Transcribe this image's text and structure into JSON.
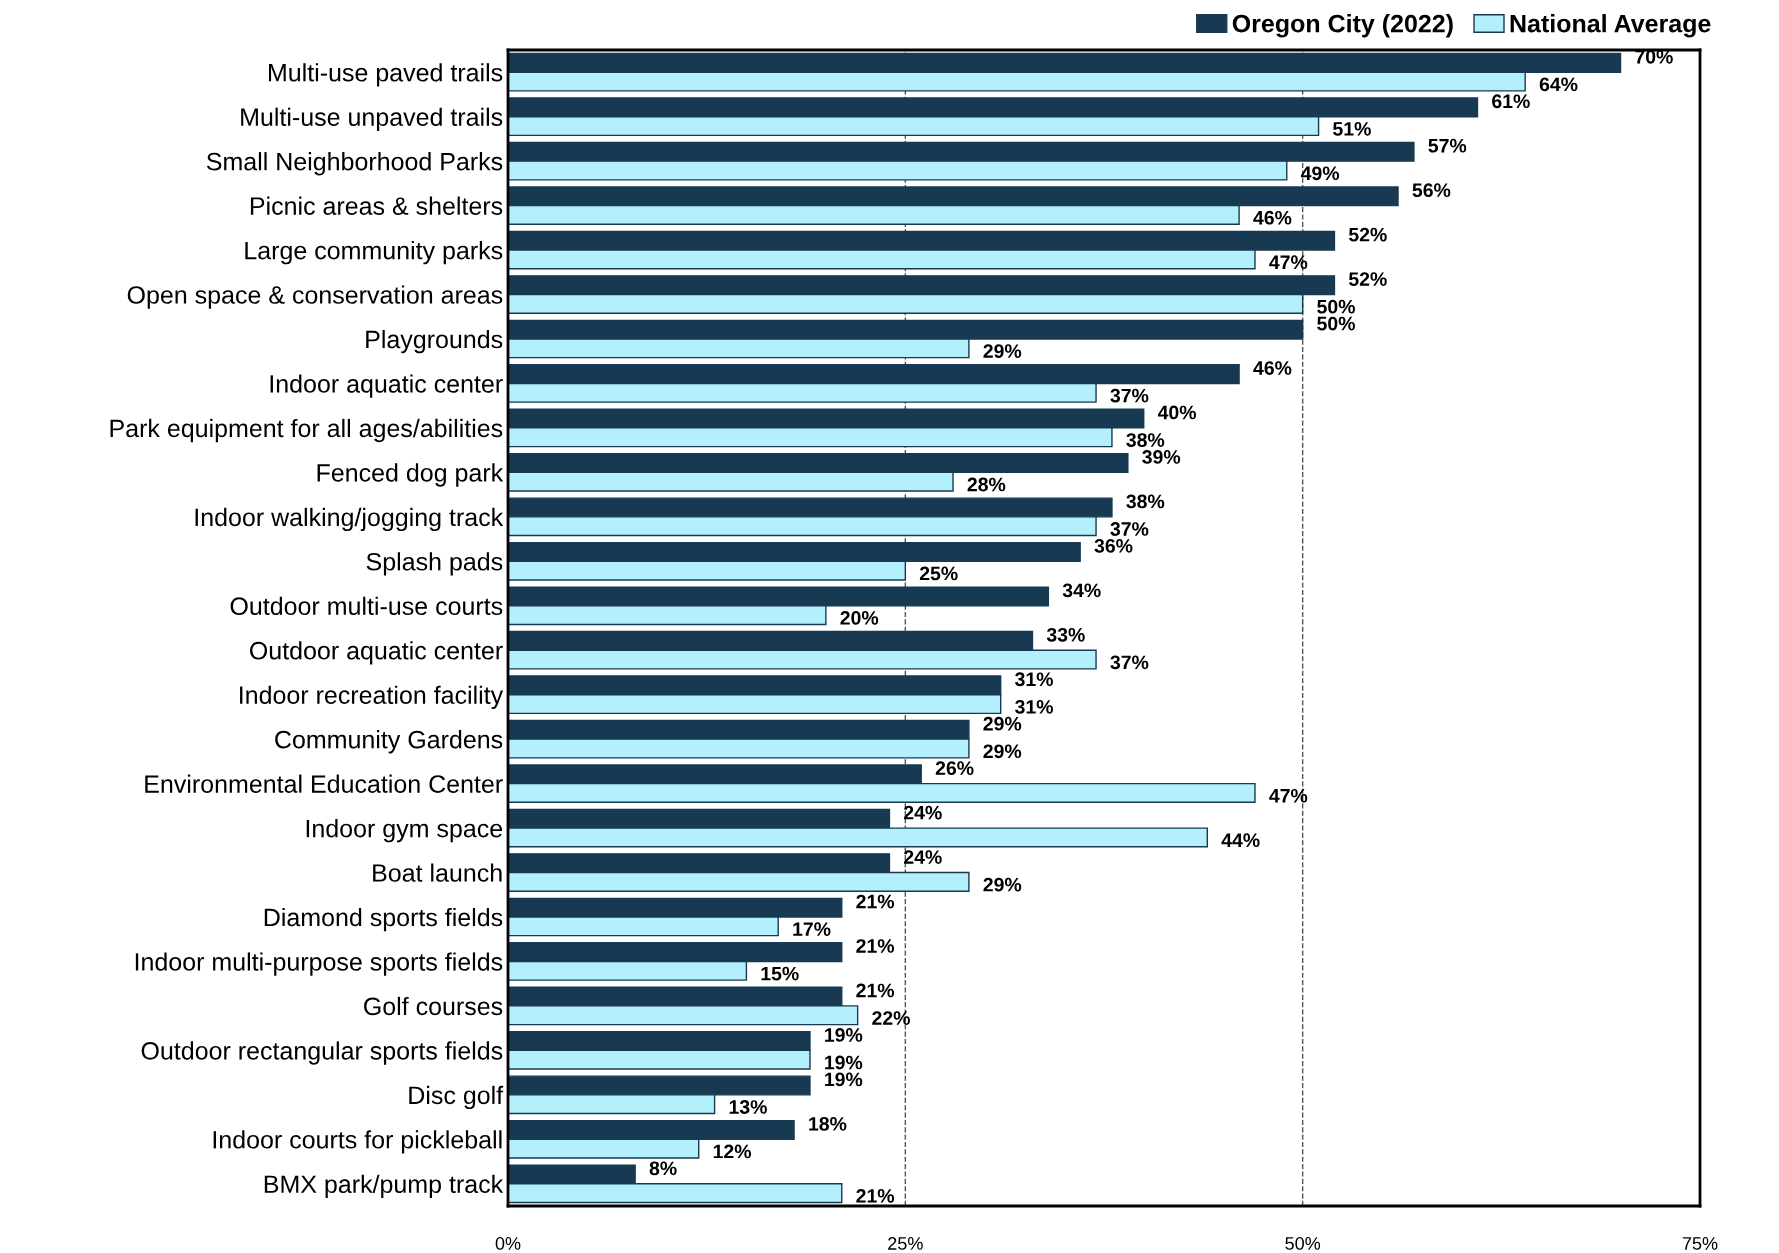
{
  "chart_data": {
    "type": "bar",
    "orientation": "horizontal",
    "categories": [
      "Multi-use paved trails",
      "Multi-use unpaved trails",
      "Small Neighborhood Parks",
      "Picnic areas & shelters",
      "Large community parks",
      "Open space & conservation areas",
      "Playgrounds",
      "Indoor aquatic center",
      "Park equipment for all ages/abilities",
      "Fenced dog park",
      "Indoor walking/jogging track",
      "Splash pads",
      "Outdoor multi-use courts",
      "Outdoor aquatic center",
      "Indoor recreation facility",
      "Community Gardens",
      "Environmental Education Center",
      "Indoor gym space",
      "Boat launch",
      "Diamond sports fields",
      "Indoor multi-purpose sports fields",
      "Golf courses",
      "Outdoor rectangular sports fields",
      "Disc golf",
      "Indoor courts for pickleball",
      "BMX park/pump track"
    ],
    "series": [
      {
        "name": "Oregon City (2022)",
        "color": "#173a52",
        "values": [
          70,
          61,
          57,
          56,
          52,
          52,
          50,
          46,
          40,
          39,
          38,
          36,
          34,
          33,
          31,
          29,
          26,
          24,
          24,
          21,
          21,
          21,
          19,
          19,
          18,
          8
        ],
        "value_labels": [
          "70%",
          "61%",
          "57%",
          "56%",
          "52%",
          "52%",
          "50%",
          "46%",
          "40%",
          "39%",
          "38%",
          "36%",
          "34%",
          "33%",
          "31%",
          "29%",
          "26%",
          "24%",
          "24%",
          "21%",
          "21%",
          "21%",
          "19%",
          "19%",
          "18%",
          "8%"
        ]
      },
      {
        "name": "National Average",
        "color": "#b3f0fb",
        "values": [
          64,
          51,
          49,
          46,
          47,
          50,
          29,
          37,
          38,
          28,
          37,
          25,
          20,
          37,
          31,
          29,
          47,
          44,
          29,
          17,
          15,
          22,
          19,
          13,
          12,
          21
        ],
        "value_labels": [
          "64%",
          "51%",
          "49%",
          "46%",
          "47%",
          "50%",
          "29%",
          "37%",
          "38%",
          "28%",
          "37%",
          "25%",
          "20%",
          "37%",
          "31%",
          "29%",
          "47%",
          "44%",
          "29%",
          "17%",
          "15%",
          "22%",
          "19%",
          "13%",
          "12%",
          "21%"
        ]
      }
    ],
    "xlim": [
      0,
      75
    ],
    "xticks": [
      {
        "value": 0,
        "label": "0%"
      },
      {
        "value": 25,
        "label": "25%"
      },
      {
        "value": 50,
        "label": "50%"
      },
      {
        "value": 75,
        "label": "75%"
      }
    ],
    "grid": "x",
    "legend": "top right"
  }
}
